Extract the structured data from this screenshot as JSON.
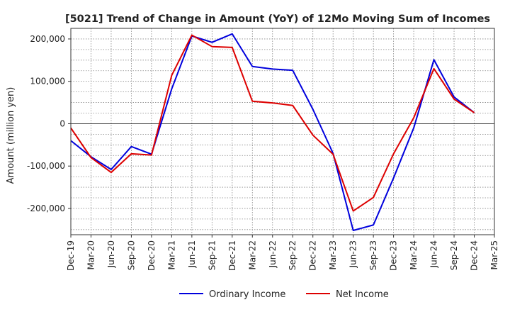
{
  "chart_data": {
    "type": "line",
    "title": "[5021]  Trend of Change in Amount (YoY) of 12Mo Moving Sum of Incomes",
    "xlabel": "",
    "ylabel": "Amount (million yen)",
    "categories": [
      "Dec-19",
      "Mar-20",
      "Jun-20",
      "Sep-20",
      "Dec-20",
      "Mar-21",
      "Jun-21",
      "Sep-21",
      "Dec-21",
      "Mar-22",
      "Jun-22",
      "Sep-22",
      "Dec-22",
      "Mar-23",
      "Jun-23",
      "Sep-23",
      "Dec-23",
      "Mar-24",
      "Jun-24",
      "Sep-24",
      "Dec-24",
      "Mar-25"
    ],
    "ylim": [
      -262000,
      225000
    ],
    "yticks": [
      -200000,
      -100000,
      0,
      100000,
      200000
    ],
    "ytick_labels": [
      "-200,000",
      "-100,000",
      "0",
      "100,000",
      "200,000"
    ],
    "grid": true,
    "legend_position": "bottom",
    "series": [
      {
        "name": "Ordinary Income",
        "color": "#0000dd",
        "values": [
          -40000,
          -78000,
          -108000,
          -54000,
          -72000,
          82000,
          207000,
          192000,
          212000,
          135000,
          129000,
          126000,
          34000,
          -70000,
          -252000,
          -239000,
          -128000,
          -10000,
          151000,
          63000,
          26000,
          null
        ]
      },
      {
        "name": "Net Income",
        "color": "#dd0000",
        "values": [
          -10000,
          -80000,
          -115000,
          -71000,
          -74000,
          114000,
          209000,
          182000,
          180000,
          53000,
          49000,
          43000,
          -27000,
          -72000,
          -206000,
          -174000,
          -71000,
          14000,
          130000,
          58000,
          26000,
          null
        ]
      }
    ]
  }
}
